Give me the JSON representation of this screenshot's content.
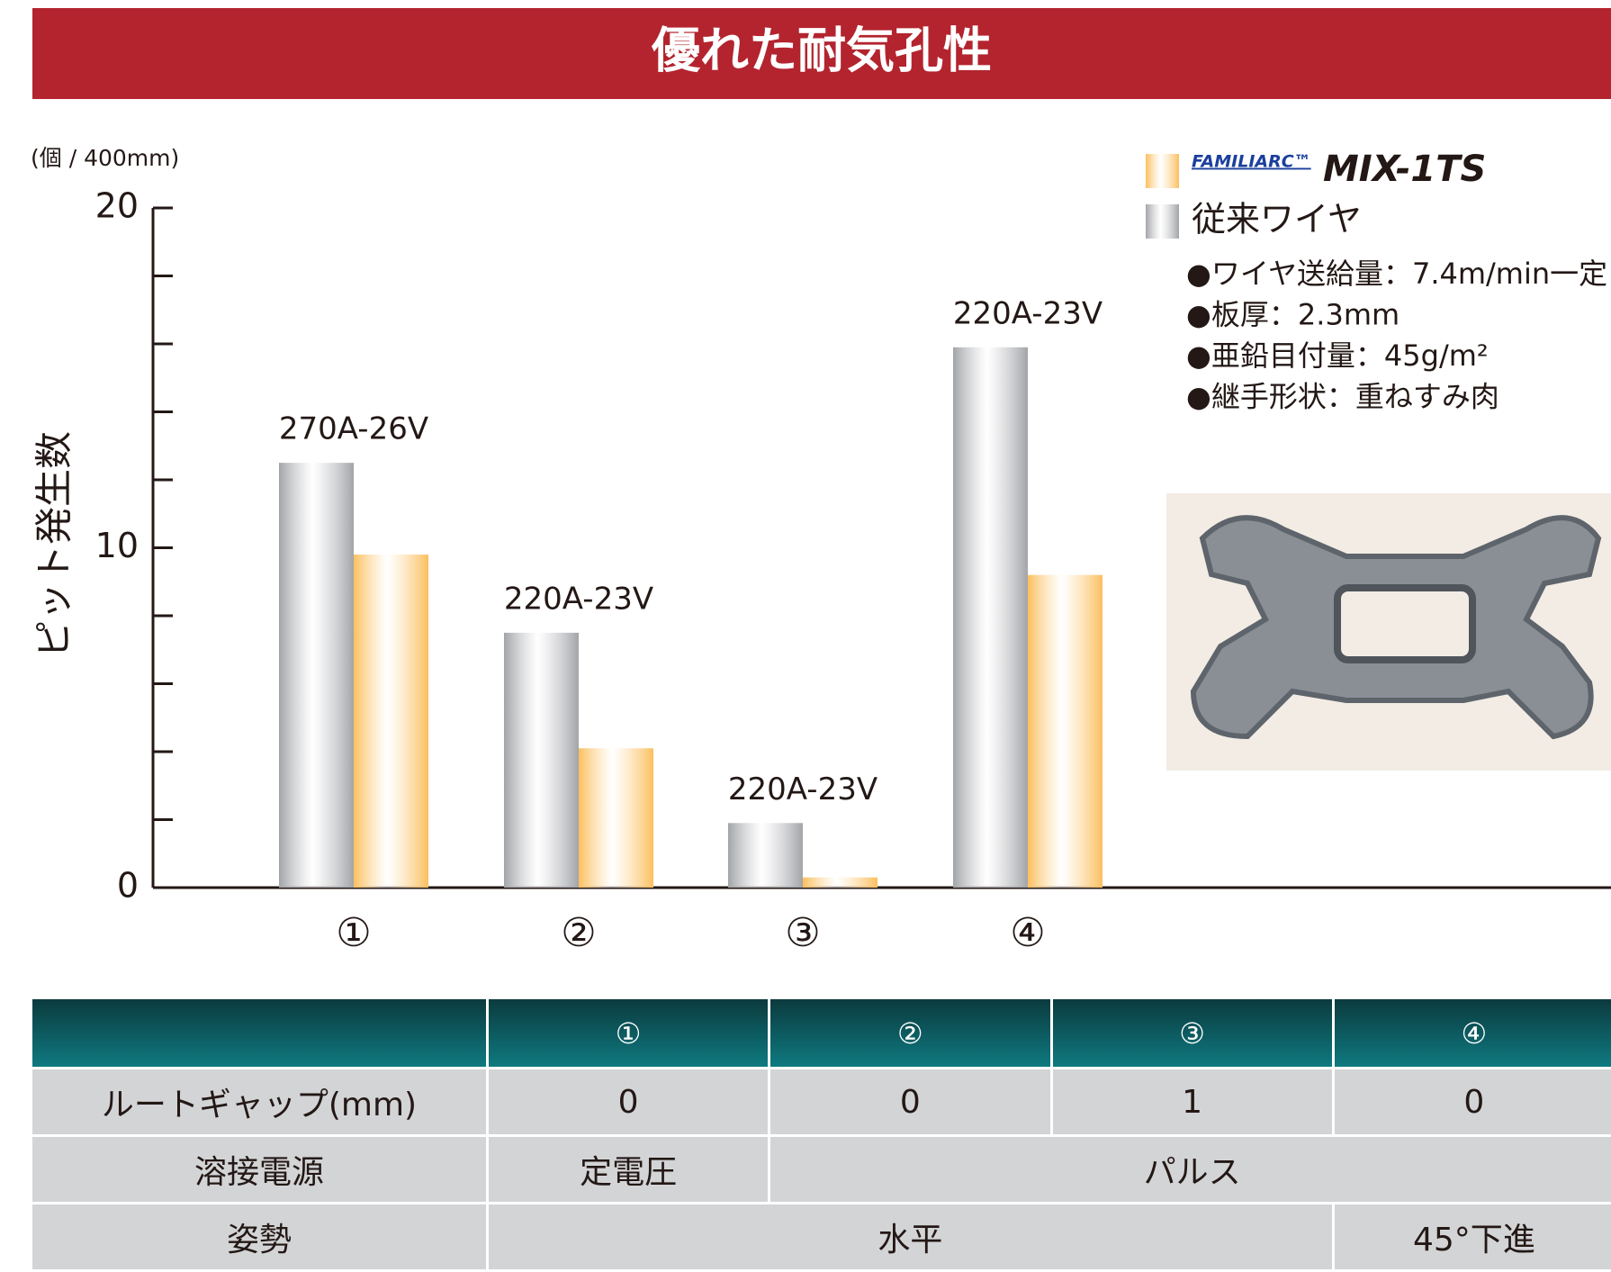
{
  "chart_data": {
    "type": "bar",
    "title": "優れた耐気孔性",
    "unit_label": "(個 / 400mm)",
    "ylabel": "ピット発生数",
    "categories": [
      "①",
      "②",
      "③",
      "④"
    ],
    "bar_annotations": [
      "270A-26V",
      "220A-23V",
      "220A-23V",
      "220A-23V"
    ],
    "series": [
      {
        "name": "従来ワイヤ",
        "color": "#a2a4a8",
        "values": [
          12.5,
          7.5,
          1.9,
          15.9
        ]
      },
      {
        "name": "MIX-1TS",
        "brand": "FAMILIARC™",
        "color": "#fbbf5e",
        "values": [
          9.8,
          4.1,
          0.3,
          9.2
        ]
      }
    ],
    "ylim": [
      0,
      20
    ],
    "yticks": [
      0,
      10,
      20
    ],
    "minor_yticks": [
      2,
      4,
      6,
      8,
      12,
      14,
      16,
      18
    ],
    "notes": [
      "●ワイヤ送給量：7.4m/min一定",
      "●板厚：2.3mm",
      "●亜鉛目付量：45g/m²",
      "●継手形状：重ねすみ肉"
    ]
  },
  "table": {
    "header": [
      "①",
      "②",
      "③",
      "④"
    ],
    "rows": [
      {
        "label": "ルートギャップ(mm)",
        "cells": [
          0,
          0,
          1,
          0
        ]
      },
      {
        "label": "溶接電源",
        "cells": [
          "定電圧",
          "パルス"
        ]
      },
      {
        "label": "姿勢",
        "cells": [
          "水平",
          "45°下進"
        ]
      }
    ]
  }
}
